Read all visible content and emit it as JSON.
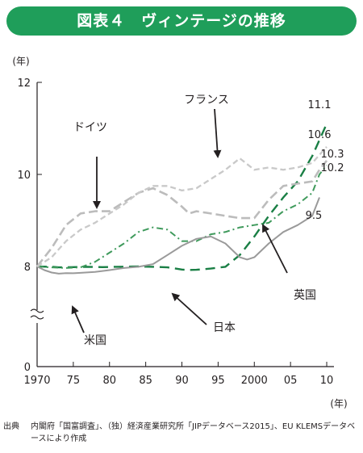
{
  "figure_title": "図表４　ヴィンテージの推移",
  "source": {
    "label": "出典",
    "text": "内閣府「国富調査」、（独）経済産業研究所「JIPデータベース2015」、EU KLEMSデータベースにより作成"
  },
  "colors": {
    "banner": "#1f9e5a",
    "japan": "#1a7f45",
    "uk": "#3f9a5c",
    "us": "#9a9a9a",
    "germany": "#bcbcbc",
    "france": "#c9c9c9",
    "axis": "#231f20"
  },
  "chart_data": {
    "type": "line",
    "x_unit": "(年)",
    "y_unit": "(年)",
    "x_ticks": [
      {
        "value": 1970,
        "label": "1970"
      },
      {
        "value": 1975,
        "label": "75"
      },
      {
        "value": 1980,
        "label": "80"
      },
      {
        "value": 1985,
        "label": "85"
      },
      {
        "value": 1990,
        "label": "90"
      },
      {
        "value": 1995,
        "label": "95"
      },
      {
        "value": 2000,
        "label": "2000"
      },
      {
        "value": 2005,
        "label": "05"
      },
      {
        "value": 2010,
        "label": "10"
      }
    ],
    "y_ticks": [
      {
        "value": 0,
        "label": "0"
      },
      {
        "value": 8,
        "label": "8"
      },
      {
        "value": 10,
        "label": "10"
      },
      {
        "value": 12,
        "label": "12"
      }
    ],
    "xlim": [
      1970,
      2011
    ],
    "ylim": [
      0,
      12
    ],
    "axis_break": "between 0 and 8",
    "series": [
      {
        "name": "日本",
        "style": "dash-long",
        "end_label": "11.1",
        "points": [
          [
            1970,
            8.0
          ],
          [
            1972,
            7.95
          ],
          [
            1973,
            7.85
          ],
          [
            1975,
            7.9
          ],
          [
            1977,
            7.95
          ],
          [
            1979,
            7.9
          ],
          [
            1981,
            7.95
          ],
          [
            1984,
            8.0
          ],
          [
            1986,
            7.95
          ],
          [
            1988,
            7.85
          ],
          [
            1990,
            7.5
          ],
          [
            1991,
            7.42
          ],
          [
            1992,
            7.45
          ],
          [
            1994,
            7.65
          ],
          [
            1996,
            7.95
          ],
          [
            1998,
            8.25
          ],
          [
            2000,
            8.65
          ],
          [
            2002,
            9.1
          ],
          [
            2004,
            9.5
          ],
          [
            2006,
            9.85
          ],
          [
            2008,
            10.4
          ],
          [
            2010,
            11.1
          ]
        ]
      },
      {
        "name": "英国",
        "style": "dash-dot",
        "end_label": "10.2",
        "points": [
          [
            1970,
            8.0
          ],
          [
            1972,
            7.85
          ],
          [
            1974,
            7.75
          ],
          [
            1976,
            7.85
          ],
          [
            1978,
            8.1
          ],
          [
            1980,
            8.3
          ],
          [
            1982,
            8.5
          ],
          [
            1984,
            8.75
          ],
          [
            1986,
            8.85
          ],
          [
            1988,
            8.8
          ],
          [
            1990,
            8.55
          ],
          [
            1992,
            8.55
          ],
          [
            1994,
            8.7
          ],
          [
            1996,
            8.75
          ],
          [
            1998,
            8.85
          ],
          [
            2000,
            8.9
          ],
          [
            2002,
            8.95
          ],
          [
            2004,
            9.2
          ],
          [
            2006,
            9.35
          ],
          [
            2008,
            9.6
          ],
          [
            2009,
            10.0
          ],
          [
            2010,
            10.2
          ]
        ]
      },
      {
        "name": "米国",
        "style": "solid",
        "end_label": "9.5",
        "points": [
          [
            1970,
            8.0
          ],
          [
            1971,
            7.4
          ],
          [
            1972,
            7.0
          ],
          [
            1973,
            6.82
          ],
          [
            1974,
            6.9
          ],
          [
            1975,
            6.88
          ],
          [
            1976,
            6.95
          ],
          [
            1978,
            7.1
          ],
          [
            1980,
            7.4
          ],
          [
            1982,
            7.75
          ],
          [
            1984,
            7.95
          ],
          [
            1986,
            8.05
          ],
          [
            1988,
            8.25
          ],
          [
            1990,
            8.45
          ],
          [
            1992,
            8.6
          ],
          [
            1994,
            8.65
          ],
          [
            1996,
            8.5
          ],
          [
            1998,
            8.2
          ],
          [
            1999,
            8.15
          ],
          [
            2000,
            8.2
          ],
          [
            2002,
            8.5
          ],
          [
            2004,
            8.75
          ],
          [
            2006,
            8.9
          ],
          [
            2008,
            9.1
          ],
          [
            2009,
            9.5
          ]
        ]
      },
      {
        "name": "ドイツ",
        "style": "dash-long-light",
        "end_label": "10.3",
        "points": [
          [
            1970,
            8.0
          ],
          [
            1972,
            8.4
          ],
          [
            1974,
            8.9
          ],
          [
            1976,
            9.15
          ],
          [
            1978,
            9.2
          ],
          [
            1980,
            9.2
          ],
          [
            1982,
            9.4
          ],
          [
            1984,
            9.6
          ],
          [
            1986,
            9.7
          ],
          [
            1988,
            9.55
          ],
          [
            1990,
            9.3
          ],
          [
            1991,
            9.15
          ],
          [
            1992,
            9.2
          ],
          [
            1994,
            9.15
          ],
          [
            1996,
            9.1
          ],
          [
            1998,
            9.05
          ],
          [
            2000,
            9.05
          ],
          [
            2002,
            9.45
          ],
          [
            2004,
            9.75
          ],
          [
            2006,
            9.8
          ],
          [
            2008,
            9.85
          ],
          [
            2009,
            10.1
          ],
          [
            2010,
            10.3
          ]
        ]
      },
      {
        "name": "フランス",
        "style": "dash-short-light",
        "end_label": "10.6",
        "points": [
          [
            1970,
            8.0
          ],
          [
            1972,
            8.2
          ],
          [
            1974,
            8.55
          ],
          [
            1976,
            8.8
          ],
          [
            1978,
            8.95
          ],
          [
            1980,
            9.15
          ],
          [
            1982,
            9.35
          ],
          [
            1984,
            9.6
          ],
          [
            1986,
            9.75
          ],
          [
            1988,
            9.75
          ],
          [
            1990,
            9.65
          ],
          [
            1992,
            9.7
          ],
          [
            1994,
            9.9
          ],
          [
            1996,
            10.1
          ],
          [
            1998,
            10.35
          ],
          [
            2000,
            10.1
          ],
          [
            2002,
            10.15
          ],
          [
            2004,
            10.1
          ],
          [
            2006,
            10.15
          ],
          [
            2008,
            10.25
          ],
          [
            2010,
            10.6
          ]
        ]
      }
    ],
    "annotations": [
      {
        "text": "フランス",
        "series": "フランス"
      },
      {
        "text": "ドイツ",
        "series": "ドイツ"
      },
      {
        "text": "英国",
        "series": "英国"
      },
      {
        "text": "日本",
        "series": "日本"
      },
      {
        "text": "米国",
        "series": "米国"
      }
    ]
  }
}
